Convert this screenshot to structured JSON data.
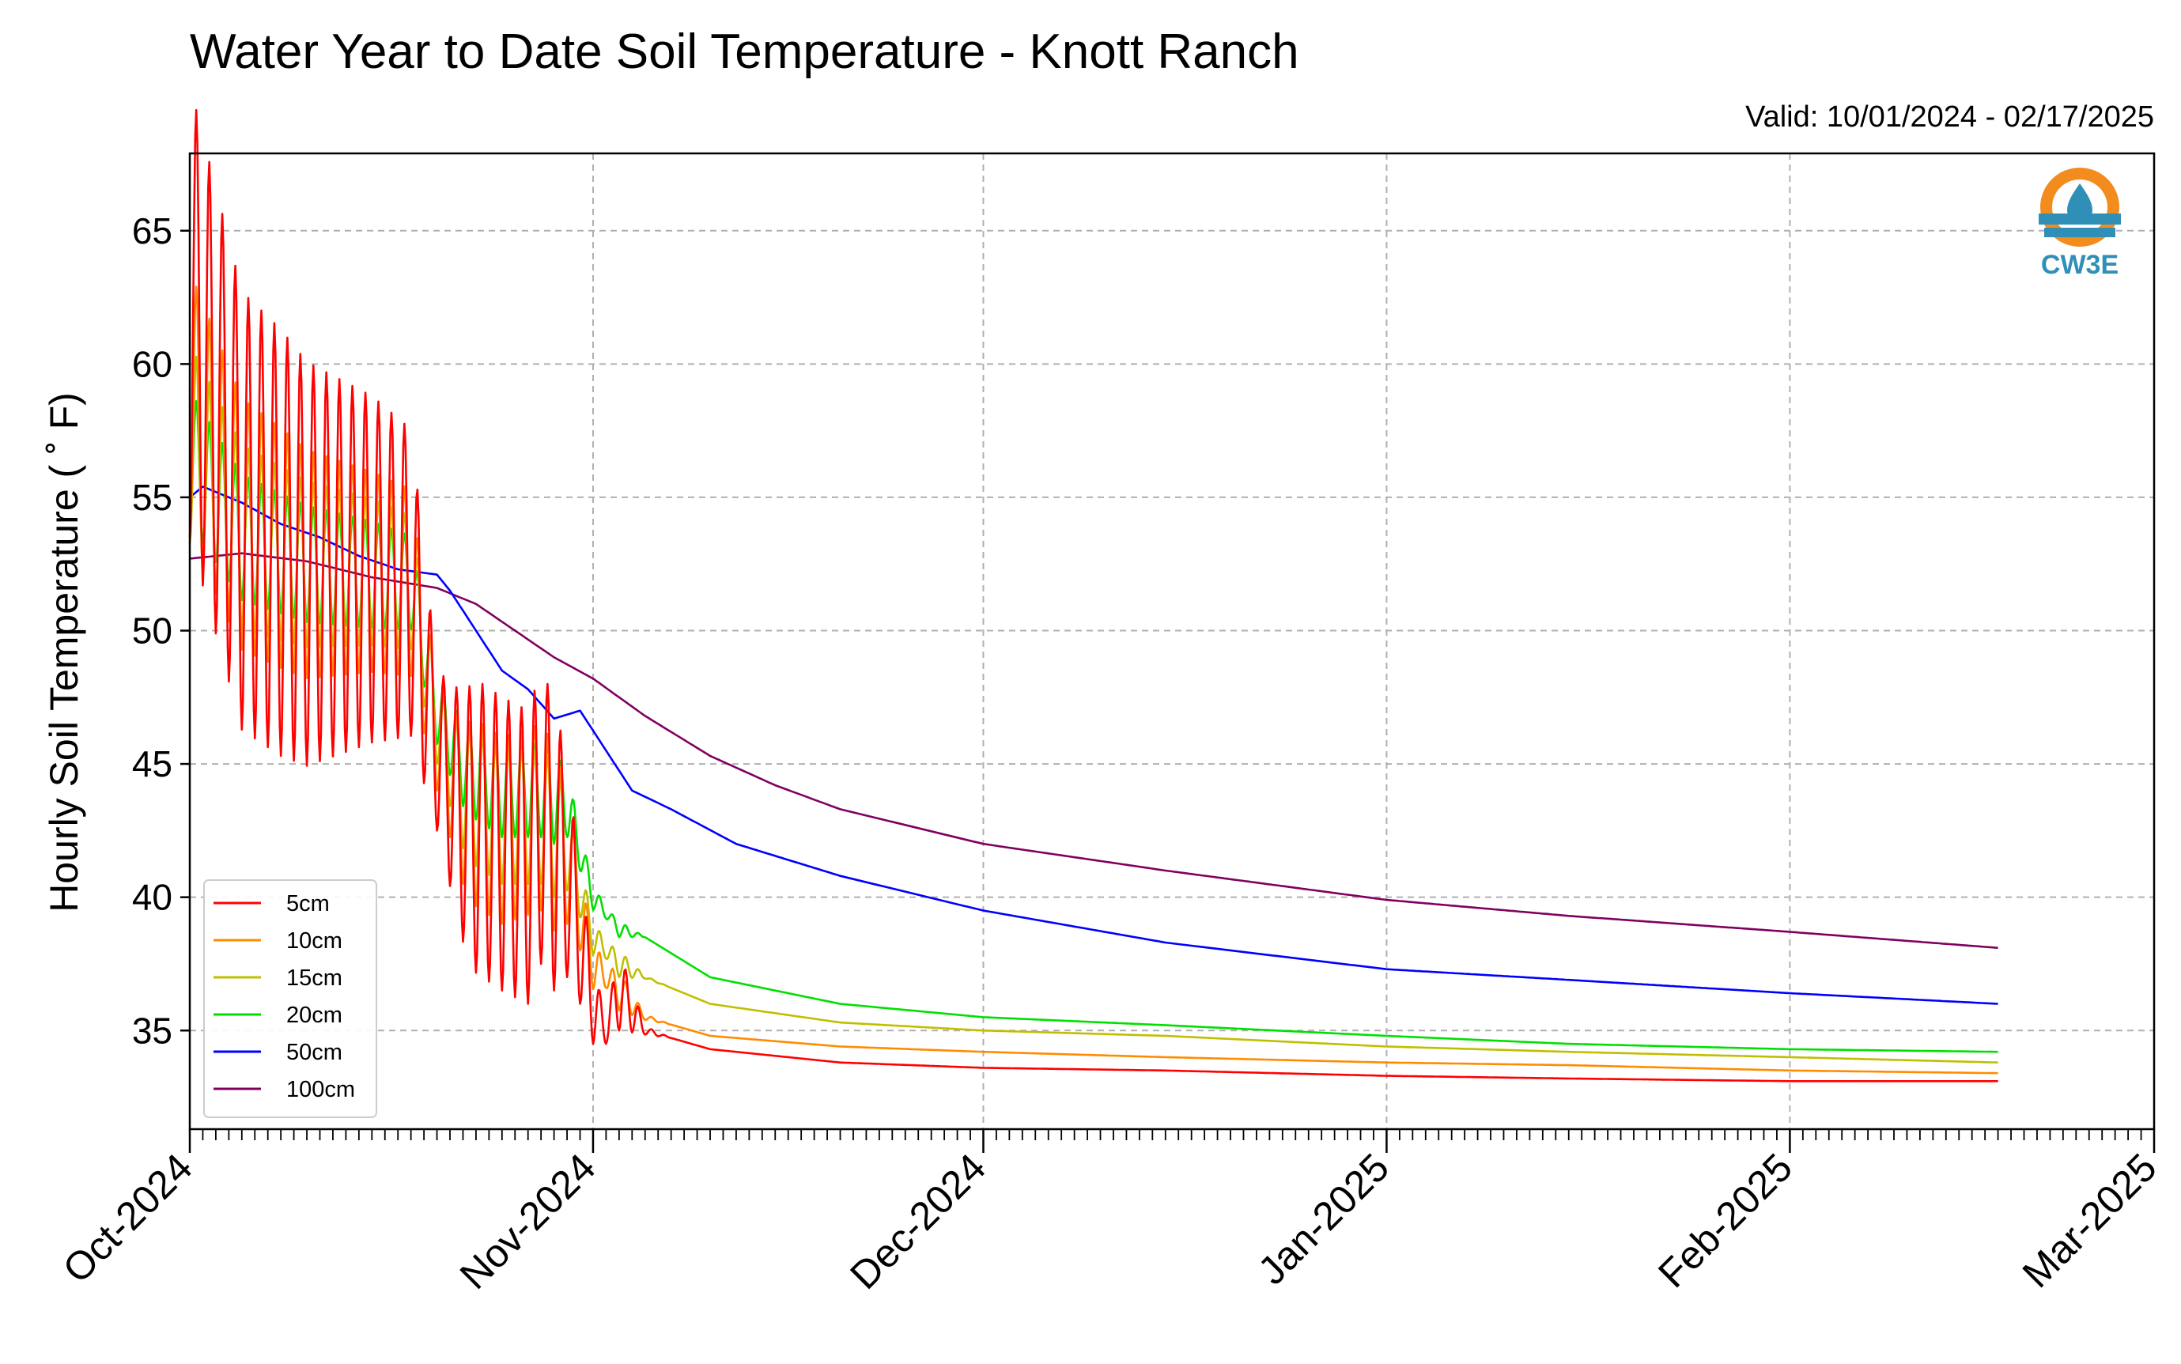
{
  "chart_data": {
    "type": "line",
    "title": "Water Year to Date Soil Temperature - Knott Ranch",
    "subtitle": "Valid: 10/01/2024 - 02/17/2025",
    "xlabel": "",
    "ylabel": "Hourly Soil Temperature ( ˚ F)",
    "x_ticks": [
      "Oct-2024",
      "Nov-2024",
      "Dec-2024",
      "Jan-2025",
      "Feb-2025",
      "Mar-2025"
    ],
    "y_ticks": [
      35,
      40,
      45,
      50,
      55,
      60,
      65
    ],
    "xlim": [
      "2024-10-01",
      "2025-03-01"
    ],
    "ylim": [
      31.3,
      67.9
    ],
    "grid": true,
    "legend_position": "bottom-left",
    "logo_text": "CW3E",
    "series": [
      {
        "name": "5cm",
        "color": "#ff0000",
        "diurnal": true,
        "points": [
          [
            "2024-10-01",
            62.0
          ],
          [
            "2024-10-05",
            54.5
          ],
          [
            "2024-10-10",
            52.5
          ],
          [
            "2024-10-15",
            52.3
          ],
          [
            "2024-10-18",
            51.8
          ],
          [
            "2024-10-20",
            45.5
          ],
          [
            "2024-10-22",
            43.0
          ],
          [
            "2024-10-25",
            42.0
          ],
          [
            "2024-10-27",
            41.5
          ],
          [
            "2024-10-28",
            43.0
          ],
          [
            "2024-10-30",
            41.0
          ],
          [
            "2024-11-01",
            36.0
          ],
          [
            "2024-11-02",
            35.0
          ],
          [
            "2024-11-03",
            36.5
          ],
          [
            "2024-11-05",
            35.0
          ],
          [
            "2024-11-10",
            34.3
          ],
          [
            "2024-11-20",
            33.8
          ],
          [
            "2024-12-01",
            33.6
          ],
          [
            "2024-12-15",
            33.5
          ],
          [
            "2025-01-01",
            33.3
          ],
          [
            "2025-01-15",
            33.2
          ],
          [
            "2025-02-01",
            33.1
          ],
          [
            "2025-02-17",
            33.1
          ]
        ],
        "amplitudes": [
          [
            "2024-10-01",
            17.0
          ],
          [
            "2024-10-08",
            16.0
          ],
          [
            "2024-10-15",
            13.0
          ],
          [
            "2024-10-18",
            11.5
          ],
          [
            "2024-10-20",
            6.0
          ],
          [
            "2024-10-23",
            11.0
          ],
          [
            "2024-10-29",
            11.0
          ],
          [
            "2024-10-31",
            5.0
          ],
          [
            "2024-11-02",
            1.0
          ],
          [
            "2024-11-03",
            3.0
          ],
          [
            "2024-11-05",
            0.3
          ],
          [
            "2024-11-07",
            0.0
          ],
          [
            "2025-02-17",
            0.0
          ]
        ]
      },
      {
        "name": "10cm",
        "color": "#ff8c00",
        "diurnal": true,
        "points": [
          [
            "2024-10-01",
            58.5
          ],
          [
            "2024-10-05",
            54.0
          ],
          [
            "2024-10-10",
            52.5
          ],
          [
            "2024-10-15",
            52.2
          ],
          [
            "2024-10-18",
            51.8
          ],
          [
            "2024-10-20",
            46.0
          ],
          [
            "2024-10-22",
            43.5
          ],
          [
            "2024-10-25",
            42.5
          ],
          [
            "2024-10-28",
            43.0
          ],
          [
            "2024-10-30",
            41.5
          ],
          [
            "2024-11-01",
            37.5
          ],
          [
            "2024-11-03",
            36.5
          ],
          [
            "2024-11-05",
            35.5
          ],
          [
            "2024-11-10",
            34.8
          ],
          [
            "2024-11-20",
            34.4
          ],
          [
            "2024-12-01",
            34.2
          ],
          [
            "2024-12-15",
            34.0
          ],
          [
            "2025-01-01",
            33.8
          ],
          [
            "2025-01-15",
            33.7
          ],
          [
            "2025-02-01",
            33.5
          ],
          [
            "2025-02-17",
            33.4
          ]
        ],
        "amplitudes": [
          [
            "2024-10-01",
            10.0
          ],
          [
            "2024-10-08",
            9.0
          ],
          [
            "2024-10-15",
            7.5
          ],
          [
            "2024-10-18",
            7.0
          ],
          [
            "2024-10-20",
            4.0
          ],
          [
            "2024-10-23",
            7.0
          ],
          [
            "2024-10-29",
            7.0
          ],
          [
            "2024-10-31",
            3.0
          ],
          [
            "2024-11-02",
            0.8
          ],
          [
            "2024-11-03",
            1.5
          ],
          [
            "2024-11-05",
            0.2
          ],
          [
            "2024-11-07",
            0.0
          ],
          [
            "2025-02-17",
            0.0
          ]
        ]
      },
      {
        "name": "15cm",
        "color": "#bfbf00",
        "diurnal": true,
        "points": [
          [
            "2024-10-01",
            57.0
          ],
          [
            "2024-10-05",
            53.5
          ],
          [
            "2024-10-10",
            52.5
          ],
          [
            "2024-10-15",
            52.2
          ],
          [
            "2024-10-18",
            51.8
          ],
          [
            "2024-10-20",
            46.5
          ],
          [
            "2024-10-22",
            44.0
          ],
          [
            "2024-10-25",
            43.0
          ],
          [
            "2024-10-28",
            43.0
          ],
          [
            "2024-10-30",
            42.0
          ],
          [
            "2024-11-01",
            38.5
          ],
          [
            "2024-11-03",
            37.5
          ],
          [
            "2024-11-05",
            37.0
          ],
          [
            "2024-11-10",
            36.0
          ],
          [
            "2024-11-20",
            35.3
          ],
          [
            "2024-12-01",
            35.0
          ],
          [
            "2024-12-15",
            34.8
          ],
          [
            "2025-01-01",
            34.4
          ],
          [
            "2025-01-15",
            34.2
          ],
          [
            "2025-02-01",
            34.0
          ],
          [
            "2025-02-17",
            33.8
          ]
        ],
        "amplitudes": [
          [
            "2024-10-01",
            7.5
          ],
          [
            "2024-10-08",
            6.5
          ],
          [
            "2024-10-15",
            5.5
          ],
          [
            "2024-10-18",
            5.0
          ],
          [
            "2024-10-20",
            3.0
          ],
          [
            "2024-10-23",
            5.0
          ],
          [
            "2024-10-29",
            5.0
          ],
          [
            "2024-10-31",
            2.0
          ],
          [
            "2024-11-02",
            0.6
          ],
          [
            "2024-11-03",
            1.0
          ],
          [
            "2024-11-05",
            0.1
          ],
          [
            "2024-11-07",
            0.0
          ],
          [
            "2025-02-17",
            0.0
          ]
        ]
      },
      {
        "name": "20cm",
        "color": "#00e000",
        "diurnal": true,
        "points": [
          [
            "2024-10-01",
            56.5
          ],
          [
            "2024-10-05",
            53.5
          ],
          [
            "2024-10-10",
            52.5
          ],
          [
            "2024-10-15",
            52.1
          ],
          [
            "2024-10-18",
            51.8
          ],
          [
            "2024-10-20",
            47.0
          ],
          [
            "2024-10-22",
            45.0
          ],
          [
            "2024-10-25",
            44.0
          ],
          [
            "2024-10-28",
            44.0
          ],
          [
            "2024-10-30",
            43.5
          ],
          [
            "2024-11-01",
            40.0
          ],
          [
            "2024-11-03",
            38.8
          ],
          [
            "2024-11-05",
            38.5
          ],
          [
            "2024-11-10",
            37.0
          ],
          [
            "2024-11-20",
            36.0
          ],
          [
            "2024-12-01",
            35.5
          ],
          [
            "2024-12-15",
            35.2
          ],
          [
            "2025-01-01",
            34.8
          ],
          [
            "2025-01-15",
            34.5
          ],
          [
            "2025-02-01",
            34.3
          ],
          [
            "2025-02-17",
            34.2
          ]
        ],
        "amplitudes": [
          [
            "2024-10-01",
            5.0
          ],
          [
            "2024-10-08",
            4.5
          ],
          [
            "2024-10-15",
            4.0
          ],
          [
            "2024-10-18",
            3.5
          ],
          [
            "2024-10-20",
            2.5
          ],
          [
            "2024-10-23",
            3.5
          ],
          [
            "2024-10-29",
            3.5
          ],
          [
            "2024-10-31",
            1.5
          ],
          [
            "2024-11-02",
            0.4
          ],
          [
            "2024-11-03",
            0.6
          ],
          [
            "2024-11-05",
            0.0
          ],
          [
            "2025-02-17",
            0.0
          ]
        ]
      },
      {
        "name": "50cm",
        "color": "#0000ff",
        "diurnal": false,
        "points": [
          [
            "2024-10-01",
            55.0
          ],
          [
            "2024-10-02",
            55.4
          ],
          [
            "2024-10-05",
            54.8
          ],
          [
            "2024-10-08",
            54.0
          ],
          [
            "2024-10-11",
            53.5
          ],
          [
            "2024-10-14",
            52.8
          ],
          [
            "2024-10-17",
            52.3
          ],
          [
            "2024-10-20",
            52.1
          ],
          [
            "2024-10-21",
            51.5
          ],
          [
            "2024-10-23",
            50.0
          ],
          [
            "2024-10-25",
            48.5
          ],
          [
            "2024-10-27",
            47.8
          ],
          [
            "2024-10-29",
            46.7
          ],
          [
            "2024-10-31",
            47.0
          ],
          [
            "2024-11-02",
            45.5
          ],
          [
            "2024-11-04",
            44.0
          ],
          [
            "2024-11-07",
            43.3
          ],
          [
            "2024-11-12",
            42.0
          ],
          [
            "2024-11-20",
            40.8
          ],
          [
            "2024-12-01",
            39.5
          ],
          [
            "2024-12-15",
            38.3
          ],
          [
            "2025-01-01",
            37.3
          ],
          [
            "2025-01-15",
            36.9
          ],
          [
            "2025-02-01",
            36.4
          ],
          [
            "2025-02-17",
            36.0
          ]
        ]
      },
      {
        "name": "100cm",
        "color": "#800060",
        "diurnal": false,
        "points": [
          [
            "2024-10-01",
            52.7
          ],
          [
            "2024-10-05",
            52.9
          ],
          [
            "2024-10-10",
            52.6
          ],
          [
            "2024-10-15",
            52.0
          ],
          [
            "2024-10-20",
            51.6
          ],
          [
            "2024-10-23",
            51.0
          ],
          [
            "2024-10-26",
            50.0
          ],
          [
            "2024-10-29",
            49.0
          ],
          [
            "2024-11-01",
            48.2
          ],
          [
            "2024-11-05",
            46.8
          ],
          [
            "2024-11-10",
            45.3
          ],
          [
            "2024-11-15",
            44.2
          ],
          [
            "2024-11-20",
            43.3
          ],
          [
            "2024-12-01",
            42.0
          ],
          [
            "2024-12-15",
            41.0
          ],
          [
            "2025-01-01",
            39.9
          ],
          [
            "2025-01-15",
            39.3
          ],
          [
            "2025-02-01",
            38.7
          ],
          [
            "2025-02-17",
            38.1
          ]
        ]
      }
    ]
  }
}
